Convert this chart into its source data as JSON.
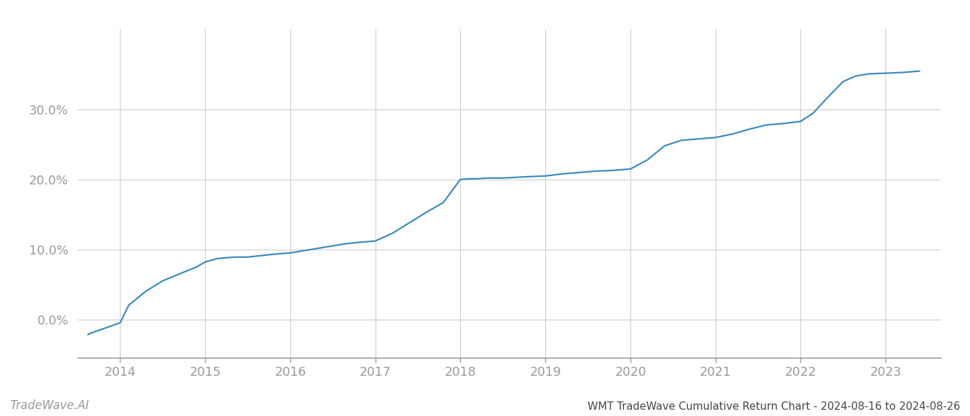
{
  "title": "WMT TradeWave Cumulative Return Chart - 2024-08-16 to 2024-08-26",
  "watermark": "TradeWave.AI",
  "line_color": "#3a8abf",
  "background_color": "#ffffff",
  "grid_color": "#cccccc",
  "x_values": [
    2013.62,
    2013.65,
    2014.0,
    2014.1,
    2014.3,
    2014.5,
    2014.7,
    2014.9,
    2015.0,
    2015.15,
    2015.25,
    2015.35,
    2015.5,
    2015.65,
    2015.8,
    2016.0,
    2016.15,
    2016.3,
    2016.5,
    2016.65,
    2016.8,
    2017.0,
    2017.2,
    2017.4,
    2017.6,
    2017.8,
    2018.0,
    2018.1,
    2018.2,
    2018.3,
    2018.5,
    2018.65,
    2018.8,
    2019.0,
    2019.2,
    2019.4,
    2019.6,
    2019.8,
    2020.0,
    2020.2,
    2020.4,
    2020.6,
    2020.8,
    2021.0,
    2021.2,
    2021.4,
    2021.6,
    2021.8,
    2022.0,
    2022.15,
    2022.3,
    2022.5,
    2022.65,
    2022.8,
    2023.0,
    2023.2,
    2023.4
  ],
  "y_values": [
    -0.022,
    -0.02,
    -0.005,
    0.02,
    0.04,
    0.055,
    0.065,
    0.075,
    0.082,
    0.087,
    0.088,
    0.089,
    0.089,
    0.091,
    0.093,
    0.095,
    0.098,
    0.101,
    0.105,
    0.108,
    0.11,
    0.112,
    0.123,
    0.138,
    0.153,
    0.167,
    0.2,
    0.201,
    0.201,
    0.202,
    0.202,
    0.203,
    0.204,
    0.205,
    0.208,
    0.21,
    0.212,
    0.213,
    0.215,
    0.228,
    0.248,
    0.256,
    0.258,
    0.26,
    0.265,
    0.272,
    0.278,
    0.28,
    0.283,
    0.295,
    0.315,
    0.34,
    0.348,
    0.351,
    0.352,
    0.353,
    0.355
  ],
  "xlim": [
    2013.5,
    2023.65
  ],
  "ylim": [
    -0.055,
    0.415
  ],
  "yticks": [
    0.0,
    0.1,
    0.2,
    0.3
  ],
  "ytick_labels": [
    "0.0%",
    "10.0%",
    "20.0%",
    "30.0%"
  ],
  "xticks": [
    2014,
    2015,
    2016,
    2017,
    2018,
    2019,
    2020,
    2021,
    2022,
    2023
  ],
  "tick_color": "#999999",
  "axis_color": "#888888",
  "title_fontsize": 11,
  "watermark_fontsize": 12,
  "tick_fontsize": 13,
  "line_width": 1.6
}
